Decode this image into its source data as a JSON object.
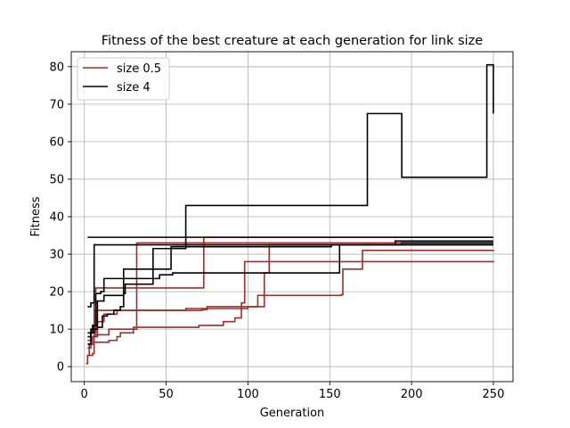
{
  "chart_data": {
    "type": "line",
    "step": true,
    "title": "Fitness of the best creature at each generation for link size",
    "xlabel": "Generation",
    "ylabel": "Fitness",
    "xlim": [
      -8,
      262
    ],
    "ylim": [
      -4,
      84
    ],
    "xticks": [
      0,
      50,
      100,
      150,
      200,
      250
    ],
    "yticks": [
      0,
      10,
      20,
      30,
      40,
      50,
      60,
      70,
      80
    ],
    "grid": true,
    "legend_position": "top-left",
    "legend": [
      {
        "label": "size 0.5",
        "color": "#a52a2a"
      },
      {
        "label": "size 4",
        "color": "#000000"
      }
    ],
    "series": [
      {
        "group": "size 0.5",
        "color": "#a52a2a",
        "points": [
          [
            1,
            0.8
          ],
          [
            2,
            3
          ],
          [
            3,
            6
          ],
          [
            5,
            8
          ],
          [
            7,
            8.5
          ],
          [
            15,
            10
          ],
          [
            30,
            10.5
          ],
          [
            70,
            11
          ],
          [
            85,
            12
          ],
          [
            92,
            13
          ],
          [
            96,
            17
          ],
          [
            98,
            28
          ],
          [
            250,
            28.2
          ]
        ]
      },
      {
        "group": "size 0.5",
        "color": "#a52a2a",
        "points": [
          [
            2,
            5
          ],
          [
            4,
            6
          ],
          [
            6,
            6.5
          ],
          [
            15,
            7
          ],
          [
            20,
            8
          ],
          [
            22,
            9
          ],
          [
            30,
            10
          ],
          [
            32,
            33
          ],
          [
            250,
            33
          ]
        ]
      },
      {
        "group": "size 0.5",
        "color": "#a52a2a",
        "points": [
          [
            3,
            3
          ],
          [
            5,
            3.5
          ],
          [
            6,
            20
          ],
          [
            7,
            21
          ],
          [
            10,
            21
          ],
          [
            12,
            21
          ],
          [
            72,
            21
          ],
          [
            73,
            34.5
          ],
          [
            250,
            34.5
          ]
        ]
      },
      {
        "group": "size 0.5",
        "color": "#a52a2a",
        "points": [
          [
            2,
            7
          ],
          [
            4,
            9
          ],
          [
            7,
            15
          ],
          [
            10,
            15
          ],
          [
            20,
            15
          ],
          [
            72,
            15.2
          ],
          [
            75,
            16
          ],
          [
            105,
            16
          ],
          [
            106,
            19
          ],
          [
            157,
            19.2
          ],
          [
            158,
            26
          ],
          [
            168,
            26
          ],
          [
            170,
            31
          ],
          [
            250,
            31.2
          ]
        ]
      },
      {
        "group": "size 0.5",
        "color": "#a52a2a",
        "points": [
          [
            2,
            7
          ],
          [
            4,
            8
          ],
          [
            8,
            12
          ],
          [
            12,
            14
          ],
          [
            20,
            15
          ],
          [
            50,
            15
          ],
          [
            62,
            15.5
          ],
          [
            70,
            15.5
          ],
          [
            100,
            16
          ],
          [
            110,
            25
          ],
          [
            113,
            32.5
          ],
          [
            250,
            32.5
          ]
        ]
      },
      {
        "group": "size 4",
        "color": "#000000",
        "points": [
          [
            2,
            34.5
          ],
          [
            250,
            34.5
          ]
        ]
      },
      {
        "group": "size 4",
        "color": "#000000",
        "points": [
          [
            2,
            6
          ],
          [
            4,
            10
          ],
          [
            8,
            10.5
          ],
          [
            11,
            13.5
          ],
          [
            14,
            14
          ],
          [
            18,
            15
          ],
          [
            22,
            16
          ],
          [
            24,
            26
          ],
          [
            30,
            26
          ],
          [
            45,
            26
          ],
          [
            52,
            26
          ],
          [
            53,
            32
          ],
          [
            150,
            32
          ],
          [
            151,
            32.5
          ],
          [
            194,
            33
          ],
          [
            250,
            33
          ]
        ]
      },
      {
        "group": "size 4",
        "color": "#000000",
        "points": [
          [
            2,
            9
          ],
          [
            5,
            11
          ],
          [
            7,
            19.5
          ],
          [
            10,
            20
          ],
          [
            12,
            23.5
          ],
          [
            40,
            23.5
          ],
          [
            46,
            24.5
          ],
          [
            54,
            25
          ],
          [
            120,
            25
          ],
          [
            155,
            25
          ],
          [
            156,
            32.5
          ],
          [
            250,
            32.5
          ]
        ]
      },
      {
        "group": "size 4",
        "color": "#000000",
        "points": [
          [
            2,
            8
          ],
          [
            4,
            9
          ],
          [
            6,
            11
          ],
          [
            8,
            17.5
          ],
          [
            12,
            19
          ],
          [
            24,
            19.5
          ],
          [
            25,
            22
          ],
          [
            28,
            22
          ],
          [
            42,
            31.5
          ],
          [
            55,
            31.5
          ],
          [
            62,
            43
          ],
          [
            172,
            43
          ],
          [
            173,
            67.5
          ],
          [
            193,
            67.5
          ],
          [
            194,
            50.5
          ],
          [
            245,
            50.5
          ],
          [
            246,
            80.5
          ],
          [
            250,
            67.5
          ]
        ]
      },
      {
        "group": "size 4",
        "color": "#000000",
        "points": [
          [
            2,
            16
          ],
          [
            4,
            17
          ],
          [
            6,
            32.5
          ],
          [
            20,
            32.5
          ],
          [
            100,
            32.5
          ],
          [
            190,
            33.5
          ],
          [
            250,
            33.5
          ]
        ]
      }
    ]
  }
}
